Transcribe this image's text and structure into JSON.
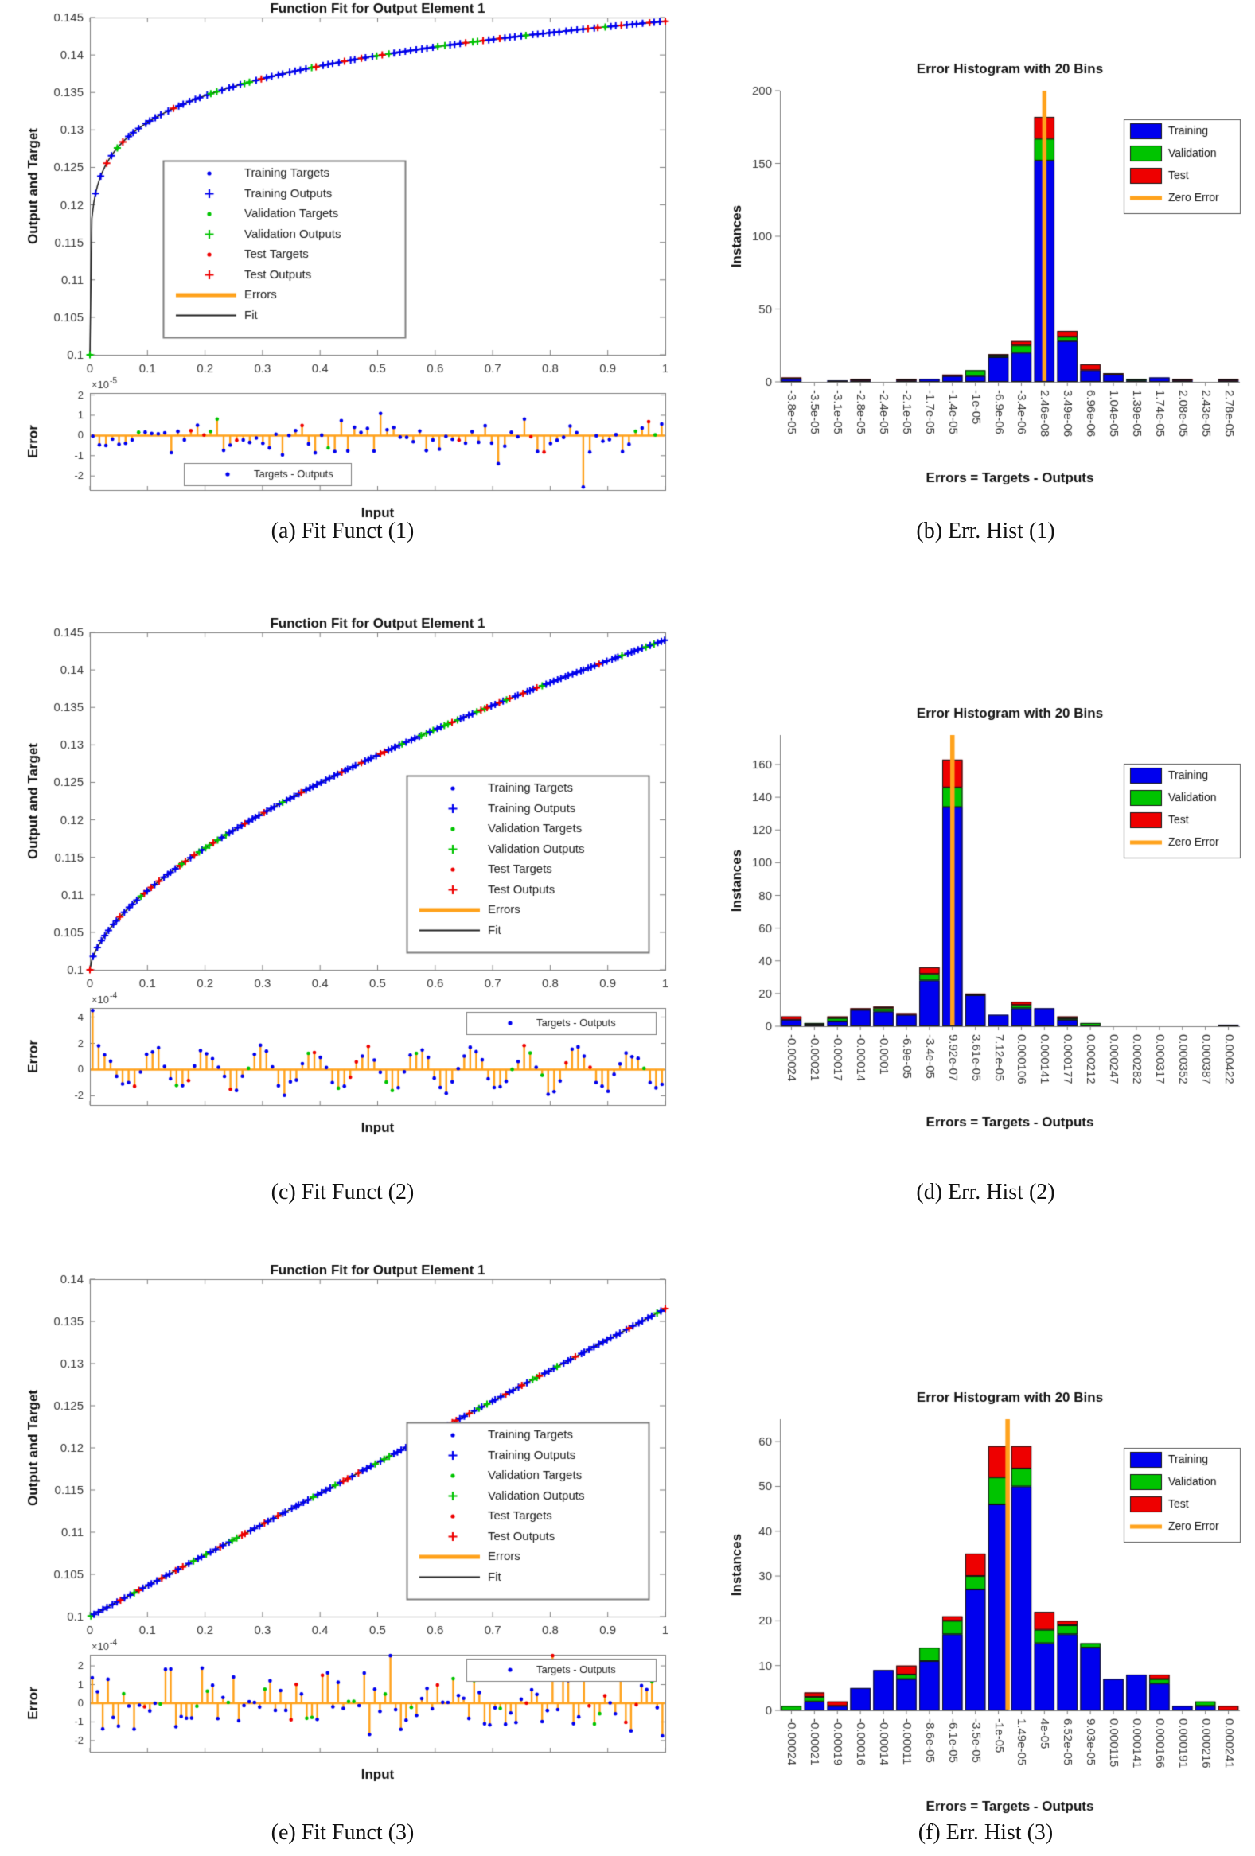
{
  "colors": {
    "training": "#0000ee",
    "validation": "#00c400",
    "test": "#ee0000",
    "zero_error": "#ffa21c",
    "errors": "#ffa21c",
    "fit_line": "#222222",
    "axis": "#808080",
    "tick_text": "#3a3a3a",
    "title_text": "#111111"
  },
  "chart_data": [
    {
      "id": "fit-1",
      "type": "scatter",
      "caption": "(a)  Fit Funct (1)",
      "title": "Function Fit for Output Element 1",
      "xlabel": "Input",
      "ylabel": "Output and Target",
      "xlim": [
        0,
        1
      ],
      "ylim": [
        0.1,
        0.145
      ],
      "xtick_labels": [
        "0",
        "0.1",
        "0.2",
        "0.3",
        "0.4",
        "0.5",
        "0.6",
        "0.7",
        "0.8",
        "0.9",
        "1"
      ],
      "ytick_values": [
        0.1,
        0.105,
        0.11,
        0.115,
        0.12,
        0.125,
        0.13,
        0.135,
        0.14,
        0.145
      ],
      "ytick_labels": [
        "0.1",
        "0.105",
        "0.11",
        "0.115",
        "0.12",
        "0.125",
        "0.13",
        "0.135",
        "0.14",
        "0.145"
      ],
      "curve_model": {
        "formula": "y = 0.1 + 0.0445*x^0.157",
        "b": 0.1,
        "a": 0.0445,
        "p": 0.157
      },
      "n_points": 105,
      "legend": [
        "Training Targets",
        "Training Outputs",
        "Validation Targets",
        "Validation Outputs",
        "Test Targets",
        "Test Outputs",
        "Errors",
        "Fit"
      ],
      "legend_pos": "left",
      "error_plot": {
        "ylabel": "Error",
        "scale_base": "×10",
        "scale_exp": "-5",
        "ylim": [
          -2.7,
          2.1
        ],
        "ytick_values": [
          2,
          1,
          0,
          -1,
          -2
        ],
        "ytick_labels": [
          "2",
          "1",
          "0",
          "-1",
          "-2"
        ],
        "n_stems": 88,
        "pattern": "random",
        "amplitude": 0.62,
        "first_spike": null,
        "neg_spike_frac": 0.85,
        "neg_spike": -2.55,
        "legend": "Targets - Outputs",
        "legend_pos": "bottom-left"
      }
    },
    {
      "id": "hist-1",
      "type": "bar",
      "caption": "(b)  Err. Hist (1)",
      "title": "Error Histogram with 20 Bins",
      "xlabel": "Errors = Targets - Outputs",
      "ylabel": "Instances",
      "bin_labels": [
        "-3.8e-05",
        "-3.5e-05",
        "-3.1e-05",
        "-2.8e-05",
        "-2.4e-05",
        "-2.1e-05",
        "-1.7e-05",
        "-1.4e-05",
        "-1e-05",
        "-6.9e-06",
        "-3.4e-06",
        "2.46e-08",
        "3.49e-06",
        "6.96e-06",
        "1.04e-05",
        "1.39e-05",
        "1.74e-05",
        "2.08e-05",
        "2.43e-05",
        "2.78e-05"
      ],
      "series": [
        {
          "name": "Training",
          "color_key": "training",
          "values": [
            2,
            0,
            1,
            1,
            0,
            1,
            2,
            4,
            4,
            17,
            20,
            152,
            28,
            8,
            5,
            1,
            3,
            1,
            0,
            1
          ]
        },
        {
          "name": "Validation",
          "color_key": "validation",
          "values": [
            0,
            0,
            0,
            0,
            0,
            0,
            0,
            0,
            4,
            1,
            5,
            15,
            3,
            0,
            0,
            1,
            0,
            0,
            0,
            0
          ]
        },
        {
          "name": "Test",
          "color_key": "test",
          "values": [
            1,
            0,
            0,
            1,
            0,
            1,
            0,
            1,
            0,
            1,
            3,
            15,
            4,
            4,
            1,
            0,
            0,
            1,
            0,
            1
          ]
        }
      ],
      "legend": [
        "Training",
        "Validation",
        "Test",
        "Zero Error"
      ],
      "ylim": [
        0,
        200
      ],
      "ytick_values": [
        0,
        50,
        100,
        150,
        200
      ],
      "ytick_labels": [
        "0",
        "50",
        "100",
        "150",
        "200"
      ],
      "zero_line_bin": 11
    },
    {
      "id": "fit-2",
      "type": "scatter",
      "caption": "(c)  Fit Funct (2)",
      "title": "Function Fit for Output Element 1",
      "xlabel": "Input",
      "ylabel": "Output and Target",
      "xlim": [
        0,
        1
      ],
      "ylim": [
        0.1,
        0.145
      ],
      "xtick_labels": [
        "0",
        "0.1",
        "0.2",
        "0.3",
        "0.4",
        "0.5",
        "0.6",
        "0.7",
        "0.8",
        "0.9",
        "1"
      ],
      "ytick_values": [
        0.1,
        0.105,
        0.11,
        0.115,
        0.12,
        0.125,
        0.13,
        0.135,
        0.14,
        0.145
      ],
      "ytick_labels": [
        "0.1",
        "0.105",
        "0.11",
        "0.115",
        "0.12",
        "0.125",
        "0.13",
        "0.135",
        "0.14",
        "0.145"
      ],
      "curve_model": {
        "formula": "y = 0.1 + 0.044*x^0.62",
        "b": 0.1,
        "a": 0.044,
        "p": 0.62
      },
      "n_points": 150,
      "legend": [
        "Training Targets",
        "Training Outputs",
        "Validation Targets",
        "Validation Outputs",
        "Test Targets",
        "Test Outputs",
        "Errors",
        "Fit"
      ],
      "legend_pos": "right",
      "error_plot": {
        "ylabel": "Error",
        "scale_base": "×10",
        "scale_exp": "-4",
        "ylim": [
          -2.7,
          4.7
        ],
        "ytick_values": [
          4,
          2,
          0,
          -2
        ],
        "ytick_labels": [
          "4",
          "2",
          "0",
          "-2"
        ],
        "n_stems": 96,
        "pattern": "wave",
        "amplitude": 1.15,
        "first_spike": 4.5,
        "neg_spike_frac": null,
        "neg_spike": null,
        "legend": "Targets - Outputs",
        "legend_pos": "top-right"
      }
    },
    {
      "id": "hist-2",
      "type": "bar",
      "caption": "(d)  Err. Hist (2)",
      "title": "Error Histogram with 20 Bins",
      "xlabel": "Errors = Targets - Outputs",
      "ylabel": "Instances",
      "bin_labels": [
        "-0.00024",
        "-0.00021",
        "-0.00017",
        "-0.00014",
        "-0.0001",
        "-6.9e-05",
        "-3.4e-05",
        "9.92e-07",
        "3.61e-05",
        "7.12e-05",
        "0.000106",
        "0.000141",
        "0.000177",
        "0.000212",
        "0.000247",
        "0.000282",
        "0.000317",
        "0.000352",
        "0.000387",
        "0.000422"
      ],
      "series": [
        {
          "name": "Training",
          "color_key": "training",
          "values": [
            4,
            1,
            3,
            10,
            9,
            7,
            28,
            134,
            19,
            7,
            11,
            11,
            4,
            0,
            0,
            0,
            0,
            0,
            0,
            1
          ]
        },
        {
          "name": "Validation",
          "color_key": "validation",
          "values": [
            0,
            1,
            2,
            0,
            2,
            0,
            4,
            12,
            0,
            0,
            2,
            0,
            1,
            2,
            0,
            0,
            0,
            0,
            0,
            0
          ]
        },
        {
          "name": "Test",
          "color_key": "test",
          "values": [
            2,
            0,
            1,
            1,
            1,
            1,
            4,
            17,
            1,
            0,
            2,
            0,
            1,
            0,
            0,
            0,
            0,
            0,
            0,
            0
          ]
        }
      ],
      "legend": [
        "Training",
        "Validation",
        "Test",
        "Zero Error"
      ],
      "ylim": [
        0,
        178
      ],
      "ytick_values": [
        0,
        20,
        40,
        60,
        80,
        100,
        120,
        140,
        160
      ],
      "ytick_labels": [
        "0",
        "20",
        "40",
        "60",
        "80",
        "100",
        "120",
        "140",
        "160"
      ],
      "zero_line_bin": 7
    },
    {
      "id": "fit-3",
      "type": "scatter",
      "caption": "(e)  Fit Funct (3)",
      "title": "Function Fit for Output Element 1",
      "xlabel": "Input",
      "ylabel": "Output and Target",
      "xlim": [
        0,
        1
      ],
      "ylim": [
        0.1,
        0.14
      ],
      "xtick_labels": [
        "0",
        "0.1",
        "0.2",
        "0.3",
        "0.4",
        "0.5",
        "0.6",
        "0.7",
        "0.8",
        "0.9",
        "1"
      ],
      "ytick_values": [
        0.1,
        0.105,
        0.11,
        0.115,
        0.12,
        0.125,
        0.13,
        0.135,
        0.14
      ],
      "ytick_labels": [
        "0.1",
        "0.105",
        "0.11",
        "0.115",
        "0.12",
        "0.125",
        "0.13",
        "0.135",
        "0.14"
      ],
      "curve_model": {
        "formula": "y = 0.1 + 0.0365*x",
        "b": 0.1,
        "a": 0.0365,
        "p": 1
      },
      "n_points": 130,
      "legend": [
        "Training Targets",
        "Training Outputs",
        "Validation Targets",
        "Validation Outputs",
        "Test Targets",
        "Test Outputs",
        "Errors",
        "Fit"
      ],
      "legend_pos": "right",
      "error_plot": {
        "ylabel": "Error",
        "scale_base": "×10",
        "scale_exp": "-4",
        "ylim": [
          -2.6,
          2.6
        ],
        "ytick_values": [
          2,
          1,
          0,
          -1,
          -2
        ],
        "ytick_labels": [
          "2",
          "1",
          "0",
          "-1",
          "-2"
        ],
        "n_stems": 110,
        "pattern": "random",
        "amplitude": 1.05,
        "first_spike": null,
        "neg_spike_frac": null,
        "neg_spike": null,
        "legend": "Targets - Outputs",
        "legend_pos": "top-right"
      }
    },
    {
      "id": "hist-3",
      "type": "bar",
      "caption": "(f)  Err. Hist (3)",
      "title": "Error Histogram with 20 Bins",
      "xlabel": "Errors = Targets - Outputs",
      "ylabel": "Instances",
      "bin_labels": [
        "-0.00024",
        "-0.00021",
        "-0.00019",
        "-0.00016",
        "-0.00014",
        "-0.00011",
        "-8.6e-05",
        "-6.1e-05",
        "-3.5e-05",
        "-1e-05",
        "1.49e-05",
        "4e-05",
        "6.52e-05",
        "9.03e-05",
        "0.000115",
        "0.000141",
        "0.000166",
        "0.000191",
        "0.000216",
        "0.000241"
      ],
      "series": [
        {
          "name": "Training",
          "color_key": "training",
          "values": [
            0,
            2,
            1,
            5,
            9,
            7,
            11,
            17,
            27,
            46,
            50,
            15,
            17,
            14,
            7,
            8,
            6,
            1,
            1,
            0
          ]
        },
        {
          "name": "Validation",
          "color_key": "validation",
          "values": [
            1,
            1,
            0,
            0,
            0,
            1,
            3,
            3,
            3,
            6,
            4,
            3,
            2,
            1,
            0,
            0,
            1,
            0,
            1,
            0
          ]
        },
        {
          "name": "Test",
          "color_key": "test",
          "values": [
            0,
            1,
            1,
            0,
            0,
            2,
            0,
            1,
            5,
            7,
            5,
            4,
            1,
            0,
            0,
            0,
            1,
            0,
            0,
            1
          ]
        }
      ],
      "legend": [
        "Training",
        "Validation",
        "Test",
        "Zero Error"
      ],
      "ylim": [
        0,
        65
      ],
      "ytick_values": [
        0,
        10,
        20,
        30,
        40,
        50,
        60
      ],
      "ytick_labels": [
        "0",
        "10",
        "20",
        "30",
        "40",
        "50",
        "60"
      ],
      "zero_line_bin": 9.4
    }
  ]
}
